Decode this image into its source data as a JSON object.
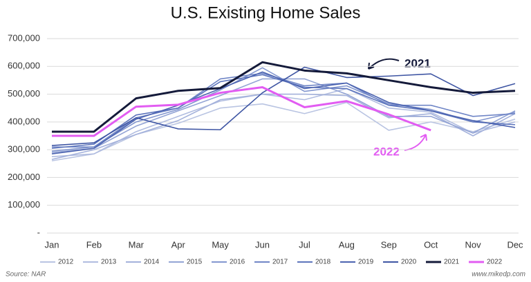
{
  "chart_data": {
    "type": "line",
    "title": "U.S. Existing Home Sales",
    "categories": [
      "Jan",
      "Feb",
      "Mar",
      "Apr",
      "May",
      "Jun",
      "Jul",
      "Aug",
      "Sep",
      "Oct",
      "Nov",
      "Dec"
    ],
    "ylim": [
      0,
      700000
    ],
    "yticks": [
      {
        "value": 0,
        "label": "-"
      },
      {
        "value": 100000,
        "label": "100,000"
      },
      {
        "value": 200000,
        "label": "200,000"
      },
      {
        "value": 300000,
        "label": "300,000"
      },
      {
        "value": 400000,
        "label": "400,000"
      },
      {
        "value": 500000,
        "label": "500,000"
      },
      {
        "value": 600000,
        "label": "600,000"
      },
      {
        "value": 700000,
        "label": "700,000"
      }
    ],
    "grid": true,
    "series": [
      {
        "name": "2012",
        "color": "#b9c4e2",
        "values": [
          260000,
          285000,
          355000,
          395000,
          450000,
          465000,
          430000,
          470000,
          370000,
          400000,
          365000,
          410000
        ]
      },
      {
        "name": "2013",
        "color": "#b0bce0",
        "values": [
          275000,
          285000,
          365000,
          420000,
          475000,
          500000,
          480000,
          520000,
          450000,
          435000,
          360000,
          400000
        ]
      },
      {
        "name": "2014",
        "color": "#a3b1db",
        "values": [
          265000,
          300000,
          355000,
          405000,
          480000,
          500000,
          500000,
          495000,
          415000,
          430000,
          350000,
          430000
        ]
      },
      {
        "name": "2015",
        "color": "#93a4d5",
        "values": [
          290000,
          305000,
          385000,
          440000,
          495000,
          555000,
          555000,
          500000,
          420000,
          420000,
          360000,
          440000
        ]
      },
      {
        "name": "2016",
        "color": "#8296cf",
        "values": [
          295000,
          310000,
          400000,
          445000,
          515000,
          595000,
          510000,
          530000,
          465000,
          445000,
          400000,
          435000
        ]
      },
      {
        "name": "2017",
        "color": "#6f85c6",
        "values": [
          310000,
          310000,
          415000,
          450000,
          555000,
          575000,
          530000,
          540000,
          460000,
          460000,
          420000,
          430000
        ]
      },
      {
        "name": "2018",
        "color": "#5c74bc",
        "values": [
          305000,
          320000,
          425000,
          450000,
          545000,
          570000,
          525000,
          520000,
          460000,
          440000,
          400000,
          390000
        ]
      },
      {
        "name": "2019",
        "color": "#4b63b0",
        "values": [
          285000,
          305000,
          410000,
          460000,
          520000,
          580000,
          520000,
          540000,
          470000,
          440000,
          405000,
          380000
        ]
      },
      {
        "name": "2020",
        "color": "#3e55a3",
        "values": [
          315000,
          325000,
          415000,
          375000,
          372000,
          505000,
          597000,
          560000,
          565000,
          573000,
          495000,
          538000
        ]
      },
      {
        "name": "2021",
        "color": "#141a3a",
        "values": [
          365000,
          365000,
          485000,
          512000,
          522000,
          615000,
          585000,
          575000,
          550000,
          525000,
          505000,
          512000
        ]
      },
      {
        "name": "2022",
        "color": "#e25cf2",
        "values": [
          350000,
          350000,
          455000,
          462000,
          505000,
          525000,
          453000,
          475000,
          427000,
          370000,
          null,
          null
        ]
      }
    ],
    "annotations": [
      "2021",
      "2022"
    ],
    "source": "Source: NAR",
    "credit": "www.mikedp.com"
  }
}
